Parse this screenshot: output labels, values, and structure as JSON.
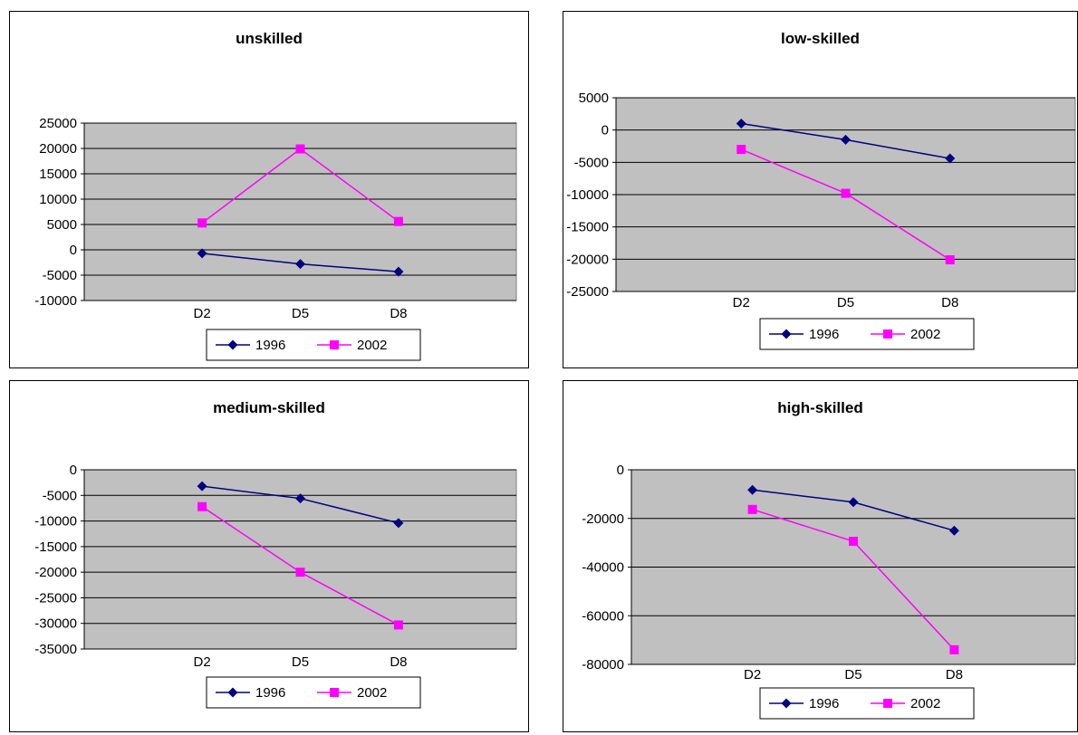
{
  "chart_data": [
    {
      "type": "line",
      "title": "unskilled",
      "categories": [
        "D2",
        "D5",
        "D8"
      ],
      "series": [
        {
          "name": "1996",
          "color": "#000080",
          "marker": "diamond",
          "values": [
            -700,
            -2800,
            -4300
          ]
        },
        {
          "name": "2002",
          "color": "#ff00ff",
          "marker": "square",
          "values": [
            5300,
            19900,
            5600
          ]
        }
      ],
      "ylim": [
        -10000,
        25000
      ],
      "yticks": [
        25000,
        20000,
        15000,
        10000,
        5000,
        0,
        -5000,
        -10000
      ],
      "grid": true,
      "legend": "bottom"
    },
    {
      "type": "line",
      "title": "low-skilled",
      "categories": [
        "D2",
        "D5",
        "D8"
      ],
      "series": [
        {
          "name": "1996",
          "color": "#000080",
          "marker": "diamond",
          "values": [
            1000,
            -1500,
            -4400
          ]
        },
        {
          "name": "2002",
          "color": "#ff00ff",
          "marker": "square",
          "values": [
            -3000,
            -9800,
            -20100
          ]
        }
      ],
      "ylim": [
        -25000,
        5000
      ],
      "yticks": [
        5000,
        0,
        -5000,
        -10000,
        -15000,
        -20000,
        -25000
      ],
      "grid": true,
      "legend": "bottom"
    },
    {
      "type": "line",
      "title": "medium-skilled",
      "categories": [
        "D2",
        "D5",
        "D8"
      ],
      "series": [
        {
          "name": "1996",
          "color": "#000080",
          "marker": "diamond",
          "values": [
            -3200,
            -5600,
            -10400
          ]
        },
        {
          "name": "2002",
          "color": "#ff00ff",
          "marker": "square",
          "values": [
            -7200,
            -20000,
            -30300
          ]
        }
      ],
      "ylim": [
        -35000,
        0
      ],
      "yticks": [
        0,
        -5000,
        -10000,
        -15000,
        -20000,
        -25000,
        -30000,
        -35000
      ],
      "grid": true,
      "legend": "bottom"
    },
    {
      "type": "line",
      "title": "high-skilled",
      "categories": [
        "D2",
        "D5",
        "D8"
      ],
      "series": [
        {
          "name": "1996",
          "color": "#000080",
          "marker": "diamond",
          "values": [
            -8300,
            -13300,
            -25000
          ]
        },
        {
          "name": "2002",
          "color": "#ff00ff",
          "marker": "square",
          "values": [
            -16300,
            -29400,
            -74000
          ]
        }
      ],
      "ylim": [
        -80000,
        0
      ],
      "yticks": [
        0,
        -20000,
        -40000,
        -60000,
        -80000
      ],
      "grid": true,
      "legend": "bottom"
    }
  ]
}
